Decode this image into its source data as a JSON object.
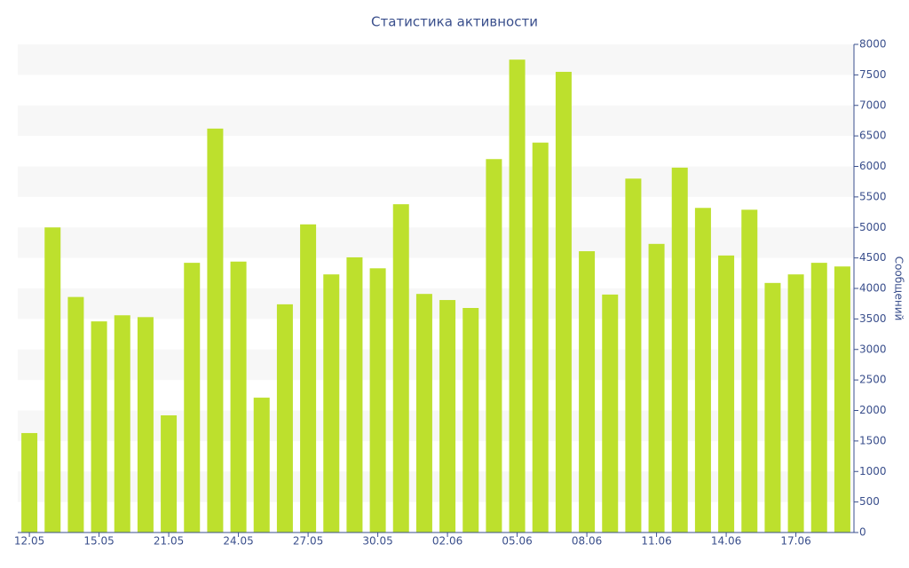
{
  "chart_data": {
    "type": "bar",
    "title": "Статистика активности",
    "y_label": "Сообщений",
    "categories": [
      "12.05",
      null,
      null,
      "15.05",
      null,
      null,
      "21.05",
      null,
      null,
      "24.05",
      null,
      null,
      "27.05",
      null,
      null,
      "30.05",
      null,
      null,
      "02.06",
      null,
      null,
      "05.06",
      null,
      null,
      "08.06",
      null,
      null,
      "11.06",
      null,
      null,
      "14.06",
      null,
      null,
      "17.06",
      null,
      null
    ],
    "values": [
      1630,
      5000,
      3860,
      3460,
      3560,
      3530,
      1920,
      4420,
      6620,
      4440,
      2210,
      3740,
      5050,
      4230,
      4510,
      4330,
      5380,
      3910,
      3810,
      3680,
      6120,
      7750,
      6390,
      7550,
      4610,
      3900,
      5800,
      4730,
      5980,
      5320,
      4540,
      5290,
      4090,
      4230,
      4420,
      4360
    ],
    "color": "#bde02d",
    "ylim": [
      0,
      8000
    ],
    "yticks": [
      0,
      500,
      1000,
      1500,
      2000,
      2500,
      3000,
      3500,
      4000,
      4500,
      5000,
      5500,
      6000,
      6500,
      7000,
      7500,
      8000
    ],
    "y_axis_side": "right",
    "grid": "bands"
  }
}
